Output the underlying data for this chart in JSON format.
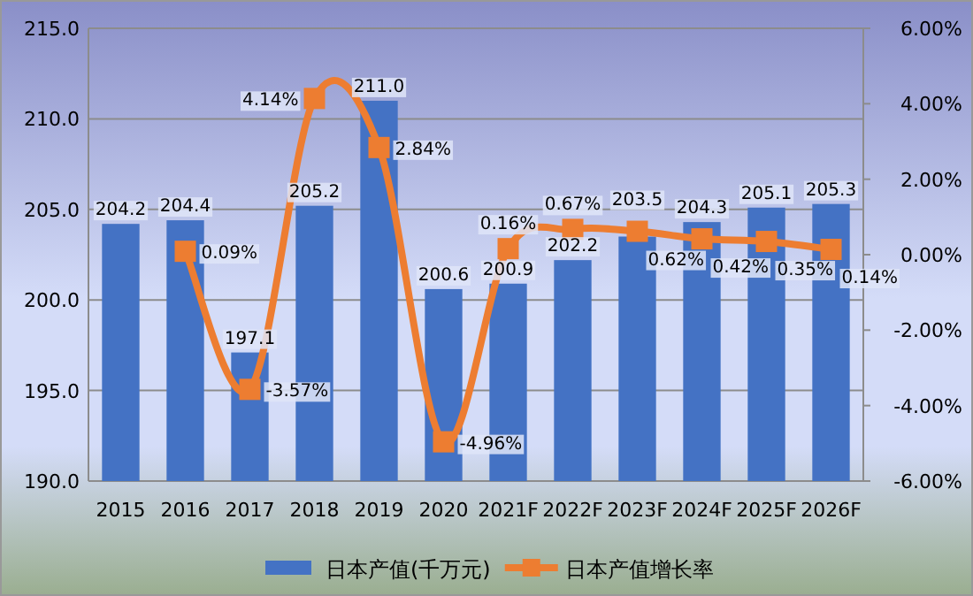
{
  "chart_data": {
    "type": "bar",
    "categories": [
      "2015",
      "2016",
      "2017",
      "2018",
      "2019",
      "2020",
      "2021F",
      "2022F",
      "2023F",
      "2024F",
      "2025F",
      "2026F"
    ],
    "series": [
      {
        "name": "日本产值(千万元)",
        "color": "#4472c4",
        "values": [
          204.2,
          204.4,
          197.1,
          205.2,
          211.0,
          200.6,
          200.9,
          202.2,
          203.5,
          204.3,
          205.1,
          205.3
        ],
        "value_labels": [
          "204.2",
          "204.4",
          "197.1",
          "205.2",
          "211.0",
          "200.6",
          "200.9",
          "202.2",
          "203.5",
          "204.3",
          "205.1",
          "205.3"
        ]
      },
      {
        "name": "日本产值增长率",
        "type": "line",
        "axis": "y2",
        "color": "#ed7d31",
        "marker": "square",
        "values": [
          null,
          0.09,
          -3.57,
          4.14,
          2.84,
          -4.96,
          0.16,
          0.67,
          0.62,
          0.42,
          0.35,
          0.14
        ],
        "value_labels": [
          null,
          "0.09%",
          "-3.57%",
          "4.14%",
          "2.84%",
          "-4.96%",
          "0.16%",
          "0.67%",
          "0.62%",
          "0.42%",
          "0.35%",
          "0.14%"
        ]
      }
    ],
    "ylim": [
      190,
      215
    ],
    "yticks": [
      {
        "value": 190,
        "label": "190.0"
      },
      {
        "value": 195,
        "label": "195.0"
      },
      {
        "value": 200,
        "label": "200.0"
      },
      {
        "value": 205,
        "label": "205.0"
      },
      {
        "value": 210,
        "label": "210.0"
      },
      {
        "value": 215,
        "label": "215.0"
      }
    ],
    "y2lim": [
      -6,
      6
    ],
    "y2ticks": [
      {
        "value": -6,
        "label": "-6.00%"
      },
      {
        "value": -4,
        "label": "-4.00%"
      },
      {
        "value": -2,
        "label": "-2.00%"
      },
      {
        "value": 0,
        "label": "0.00%"
      },
      {
        "value": 2,
        "label": "2.00%"
      },
      {
        "value": 4,
        "label": "4.00%"
      },
      {
        "value": 6,
        "label": "6.00%"
      }
    ],
    "grid": "y",
    "legend": "bottom"
  }
}
